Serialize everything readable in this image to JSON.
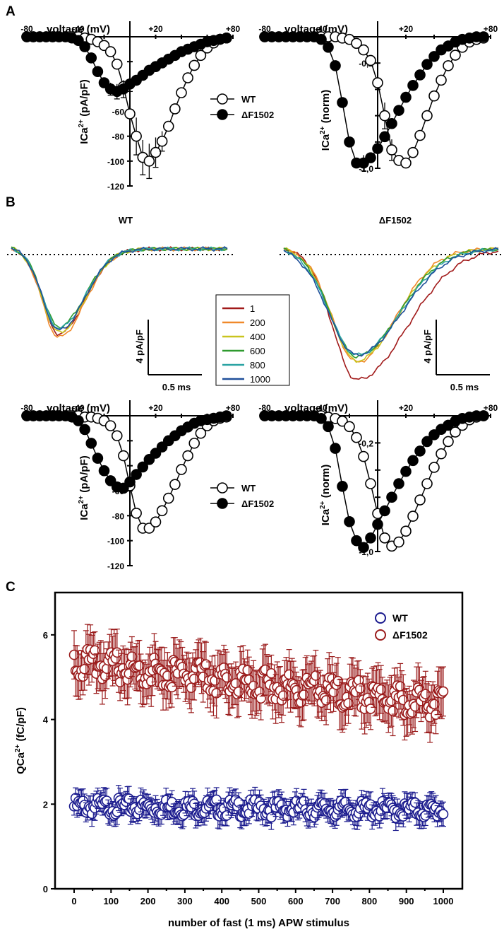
{
  "panels": {
    "a": "A",
    "b": "B",
    "c": "C"
  },
  "colors": {
    "wt_c": "#1b1b8e",
    "mut_c": "#9b1c1c"
  },
  "chart_data": [
    {
      "id": "A-left",
      "type": "line",
      "xlabel": "voltage (mV)",
      "ylabel": "ICa2+ (pA/pF)",
      "xlim": [
        -80,
        80
      ],
      "ylim": [
        -120,
        0
      ],
      "x_ticklabels": [
        "-80",
        "-40",
        "+20",
        "+80"
      ],
      "y_ticklabels": [
        "-60",
        "-80",
        "-100",
        "-120"
      ],
      "legend": [
        "WT",
        "ΔF1502"
      ],
      "x": [
        -80,
        -75,
        -70,
        -65,
        -60,
        -55,
        -50,
        -45,
        -40,
        -35,
        -30,
        -25,
        -20,
        -15,
        -10,
        -5,
        0,
        5,
        10,
        15,
        20,
        25,
        30,
        35,
        40,
        45,
        50,
        55,
        60,
        65,
        70,
        75
      ],
      "series": [
        {
          "name": "WT",
          "marker": "open",
          "values": [
            0,
            0,
            0,
            0,
            0,
            0,
            0,
            0,
            0,
            -1,
            -2,
            -4,
            -7,
            -12,
            -22,
            -40,
            -62,
            -80,
            -97,
            -100,
            -93,
            -84,
            -72,
            -58,
            -45,
            -33,
            -23,
            -15,
            -9,
            -5,
            -2,
            -1
          ],
          "errors": [
            0,
            0,
            0,
            0,
            0,
            0,
            0,
            0,
            0,
            0,
            0,
            0,
            0,
            0,
            0,
            0,
            0,
            15,
            14,
            14,
            12,
            8,
            0,
            0,
            0,
            0,
            0,
            0,
            0,
            0,
            0,
            0
          ]
        },
        {
          "name": "ΔF1502",
          "marker": "filled",
          "values": [
            0,
            0,
            0,
            0,
            0,
            0,
            0,
            -1,
            -3,
            -8,
            -17,
            -28,
            -37,
            -42,
            -44,
            -42,
            -38,
            -35,
            -31,
            -27,
            -24,
            -21,
            -18,
            -15,
            -12,
            -10,
            -8,
            -6,
            -4,
            -3,
            -2,
            -1
          ],
          "errors": [
            0,
            0,
            0,
            0,
            0,
            0,
            0,
            0,
            0,
            0,
            0,
            0,
            0,
            5,
            6,
            7,
            6,
            0,
            0,
            0,
            0,
            0,
            0,
            0,
            0,
            0,
            0,
            0,
            0,
            0,
            0,
            0
          ]
        }
      ]
    },
    {
      "id": "A-right",
      "type": "line",
      "xlabel": "voltage (mV)",
      "ylabel": "ICa2+ (norm)",
      "xlim": [
        -80,
        80
      ],
      "ylim": [
        -1.0,
        0
      ],
      "x_ticklabels": [
        "-80",
        "-40",
        "+20",
        "+80"
      ],
      "y_ticklabels": [
        "-0,2",
        "-1,0"
      ],
      "x": [
        -80,
        -75,
        -70,
        -65,
        -60,
        -55,
        -50,
        -45,
        -40,
        -35,
        -30,
        -25,
        -20,
        -15,
        -10,
        -5,
        0,
        5,
        10,
        15,
        20,
        25,
        30,
        35,
        40,
        45,
        50,
        55,
        60,
        65,
        70,
        75
      ],
      "series": [
        {
          "name": "WT",
          "marker": "open",
          "values": [
            0,
            0,
            0,
            0,
            0,
            0,
            0,
            0,
            0,
            0,
            0,
            -0.01,
            -0.02,
            -0.05,
            -0.1,
            -0.18,
            -0.35,
            -0.6,
            -0.86,
            -0.94,
            -0.96,
            -0.88,
            -0.75,
            -0.6,
            -0.45,
            -0.33,
            -0.22,
            -0.14,
            -0.08,
            -0.04,
            -0.02,
            -0.01
          ],
          "errors": [
            0,
            0,
            0,
            0,
            0,
            0,
            0,
            0,
            0,
            0,
            0,
            0,
            0,
            0,
            0,
            0,
            0,
            0.1,
            0.08,
            0,
            0,
            0,
            0,
            0,
            0,
            0,
            0,
            0,
            0,
            0,
            0,
            0
          ]
        },
        {
          "name": "ΔF1502",
          "marker": "filled",
          "values": [
            0,
            0,
            0,
            0,
            0,
            0,
            0,
            0,
            -0.02,
            -0.08,
            -0.22,
            -0.5,
            -0.8,
            -0.96,
            -0.96,
            -0.92,
            -0.85,
            -0.76,
            -0.66,
            -0.56,
            -0.46,
            -0.37,
            -0.29,
            -0.21,
            -0.15,
            -0.1,
            -0.07,
            -0.04,
            -0.02,
            -0.01,
            0,
            0
          ],
          "errors": [
            0,
            0,
            0,
            0,
            0,
            0,
            0,
            0,
            0,
            0,
            0,
            0,
            0,
            0,
            0.06,
            0,
            0,
            0,
            0,
            0,
            0,
            0,
            0,
            0,
            0,
            0,
            0,
            0,
            0,
            0,
            0,
            0
          ]
        }
      ]
    },
    {
      "id": "B-WT-traces",
      "type": "line",
      "title": "WT",
      "legend": [
        "1",
        "200",
        "400",
        "600",
        "800",
        "1000"
      ],
      "scalebar": {
        "y": "4 pA/pF",
        "x": "0.5 ms"
      },
      "series": [
        {
          "name": "1",
          "color": "#a11a1a"
        },
        {
          "name": "200",
          "color": "#f0892a"
        },
        {
          "name": "400",
          "color": "#c9c41e"
        },
        {
          "name": "600",
          "color": "#2f9a2f"
        },
        {
          "name": "800",
          "color": "#2aa3a3"
        },
        {
          "name": "1000",
          "color": "#1f4f9a"
        }
      ]
    },
    {
      "id": "B-dF1502-traces",
      "type": "line",
      "title": "ΔF1502",
      "scalebar": {
        "y": "4 pA/pF",
        "x": "0.5 ms"
      }
    },
    {
      "id": "B-left-IV",
      "type": "line",
      "xlabel": "voltage (mV)",
      "ylabel": "ICa2+ (pA/pF)",
      "xlim": [
        -80,
        80
      ],
      "ylim": [
        -120,
        0
      ],
      "x_ticklabels": [
        "-80",
        "-40",
        "+20",
        "+80"
      ],
      "y_ticklabels": [
        "-60",
        "-80",
        "-100",
        "-120"
      ],
      "legend": [
        "WT",
        "ΔF1502"
      ],
      "x": [
        -80,
        -75,
        -70,
        -65,
        -60,
        -55,
        -50,
        -45,
        -40,
        -35,
        -30,
        -25,
        -20,
        -15,
        -10,
        -5,
        0,
        5,
        10,
        15,
        20,
        25,
        30,
        35,
        40,
        45,
        50,
        55,
        60,
        65,
        70,
        75
      ],
      "series": [
        {
          "name": "WT",
          "marker": "open",
          "values": [
            0,
            0,
            0,
            0,
            0,
            0,
            0,
            0,
            0,
            -1,
            -1,
            -2,
            -4,
            -8,
            -16,
            -32,
            -56,
            -78,
            -90,
            -90,
            -85,
            -76,
            -66,
            -55,
            -43,
            -32,
            -22,
            -14,
            -8,
            -4,
            -2,
            -1
          ]
        },
        {
          "name": "ΔF1502",
          "marker": "filled",
          "values": [
            0,
            0,
            0,
            0,
            0,
            0,
            0,
            -1,
            -4,
            -11,
            -22,
            -34,
            -44,
            -52,
            -57,
            -58,
            -53,
            -47,
            -41,
            -35,
            -30,
            -25,
            -20,
            -16,
            -12,
            -9,
            -6,
            -4,
            -3,
            -2,
            -1,
            0
          ]
        }
      ]
    },
    {
      "id": "B-right-IV",
      "type": "line",
      "xlabel": "voltage (mV)",
      "ylabel": "ICa2+ (norm)",
      "xlim": [
        -80,
        80
      ],
      "ylim": [
        -1.0,
        0
      ],
      "x_ticklabels": [
        "-80",
        "-40",
        "+20",
        "+80"
      ],
      "y_ticklabels": [
        "-0,2",
        "-1,0"
      ],
      "x": [
        -80,
        -75,
        -70,
        -65,
        -60,
        -55,
        -50,
        -45,
        -40,
        -35,
        -30,
        -25,
        -20,
        -15,
        -10,
        -5,
        0,
        5,
        10,
        15,
        20,
        25,
        30,
        35,
        40,
        45,
        50,
        55,
        60,
        65,
        70,
        75
      ],
      "series": [
        {
          "name": "WT",
          "marker": "open",
          "values": [
            0,
            0,
            0,
            0,
            0,
            0,
            0,
            0,
            0,
            -0.01,
            -0.02,
            -0.04,
            -0.08,
            -0.16,
            -0.3,
            -0.5,
            -0.72,
            -0.9,
            -0.96,
            -0.93,
            -0.85,
            -0.74,
            -0.62,
            -0.5,
            -0.38,
            -0.28,
            -0.19,
            -0.12,
            -0.07,
            -0.03,
            -0.01,
            0
          ]
        },
        {
          "name": "ΔF1502",
          "marker": "filled",
          "values": [
            0,
            0,
            0,
            0,
            0,
            0,
            0,
            0,
            -0.02,
            -0.08,
            -0.24,
            -0.52,
            -0.78,
            -0.92,
            -0.97,
            -0.9,
            -0.8,
            -0.7,
            -0.6,
            -0.5,
            -0.41,
            -0.33,
            -0.26,
            -0.19,
            -0.14,
            -0.1,
            -0.07,
            -0.04,
            -0.02,
            -0.01,
            0,
            0
          ]
        }
      ]
    },
    {
      "id": "C",
      "type": "scatter",
      "xlabel": "number of fast  (1 ms) APW stimulus",
      "ylabel": "QCa2+ (fC/pF)",
      "xlim": [
        0,
        1000
      ],
      "ylim": [
        0,
        7
      ],
      "xticks": [
        0,
        100,
        200,
        300,
        400,
        500,
        600,
        700,
        800,
        900,
        1000
      ],
      "yticks": [
        0,
        2,
        4,
        6
      ],
      "legend": [
        "WT",
        "ΔF1502"
      ],
      "legend_position": "top-right",
      "series": [
        {
          "name": "WT",
          "trend": {
            "start": 1.95,
            "end": 1.85
          },
          "spread": 0.15,
          "sem": 0.3,
          "n_points": 250
        },
        {
          "name": "ΔF1502",
          "trend": {
            "start": 5.35,
            "end": 4.35
          },
          "spread": 0.25,
          "sem": 0.6,
          "n_points": 250
        }
      ]
    }
  ]
}
